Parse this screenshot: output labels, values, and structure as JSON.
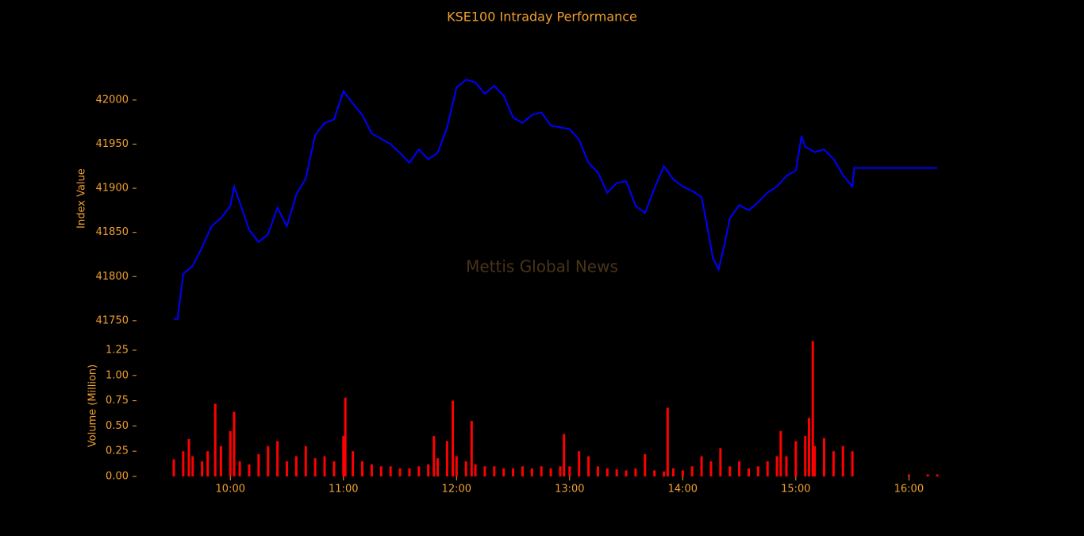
{
  "chart_data": [
    {
      "type": "line",
      "title": "KSE100 Intraday Performance",
      "ylabel": "Index Value",
      "annotation": "Mettis Global News",
      "series": [
        {
          "name": "KSE100",
          "color": "#0000ff",
          "x": [
            "09:30",
            "09:32",
            "09:35",
            "09:40",
            "09:45",
            "09:50",
            "09:55",
            "10:00",
            "10:02",
            "10:05",
            "10:10",
            "10:15",
            "10:20",
            "10:25",
            "10:30",
            "10:35",
            "10:40",
            "10:45",
            "10:50",
            "10:55",
            "11:00",
            "11:05",
            "11:10",
            "11:15",
            "11:20",
            "11:25",
            "11:30",
            "11:35",
            "11:40",
            "11:45",
            "11:50",
            "11:55",
            "12:00",
            "12:05",
            "12:10",
            "12:15",
            "12:20",
            "12:25",
            "12:30",
            "12:35",
            "12:40",
            "12:45",
            "12:50",
            "12:55",
            "13:00",
            "13:05",
            "13:10",
            "13:15",
            "13:20",
            "13:25",
            "13:30",
            "13:35",
            "13:40",
            "13:45",
            "13:50",
            "13:55",
            "14:00",
            "14:05",
            "14:10",
            "14:13",
            "14:16",
            "14:19",
            "14:22",
            "14:25",
            "14:30",
            "14:35",
            "14:40",
            "14:45",
            "14:50",
            "14:55",
            "15:00",
            "15:03",
            "15:05",
            "15:10",
            "15:15",
            "15:20",
            "15:25",
            "15:30",
            "15:31",
            "16:15"
          ],
          "values": [
            41752,
            41752,
            41803,
            41812,
            41833,
            41857,
            41866,
            41880,
            41902,
            41884,
            41853,
            41839,
            41848,
            41878,
            41857,
            41893,
            41911,
            41960,
            41974,
            41978,
            42010,
            41996,
            41983,
            41962,
            41956,
            41950,
            41940,
            41929,
            41944,
            41933,
            41940,
            41969,
            42014,
            42023,
            42020,
            42007,
            42016,
            42005,
            41980,
            41974,
            41983,
            41986,
            41971,
            41969,
            41967,
            41955,
            41929,
            41918,
            41895,
            41906,
            41908,
            41880,
            41872,
            41900,
            41925,
            41910,
            41902,
            41897,
            41890,
            41857,
            41821,
            41808,
            41835,
            41866,
            41881,
            41875,
            41884,
            41895,
            41902,
            41914,
            41920,
            41959,
            41947,
            41941,
            41944,
            41933,
            41915,
            41902,
            41923,
            41923
          ]
        }
      ],
      "xlim": [
        "09:30",
        "16:15"
      ],
      "ylim": [
        41740,
        42035
      ],
      "yticks": [
        41750,
        41800,
        41850,
        41900,
        41950,
        42000
      ]
    },
    {
      "type": "bar",
      "ylabel": "Volume (Million)",
      "series": [
        {
          "name": "Volume",
          "color": "#ff0000",
          "x": [
            "09:30",
            "09:35",
            "09:38",
            "09:40",
            "09:45",
            "09:48",
            "09:52",
            "09:55",
            "10:00",
            "10:02",
            "10:05",
            "10:10",
            "10:15",
            "10:20",
            "10:25",
            "10:30",
            "10:35",
            "10:40",
            "10:45",
            "10:50",
            "10:55",
            "11:00",
            "11:01",
            "11:05",
            "11:10",
            "11:15",
            "11:20",
            "11:25",
            "11:30",
            "11:35",
            "11:40",
            "11:45",
            "11:48",
            "11:50",
            "11:55",
            "11:58",
            "12:00",
            "12:05",
            "12:08",
            "12:10",
            "12:15",
            "12:20",
            "12:25",
            "12:30",
            "12:35",
            "12:40",
            "12:45",
            "12:50",
            "12:55",
            "12:57",
            "13:00",
            "13:05",
            "13:10",
            "13:15",
            "13:20",
            "13:25",
            "13:30",
            "13:35",
            "13:40",
            "13:45",
            "13:50",
            "13:52",
            "13:55",
            "14:00",
            "14:05",
            "14:10",
            "14:15",
            "14:20",
            "14:25",
            "14:30",
            "14:35",
            "14:40",
            "14:45",
            "14:50",
            "14:52",
            "14:55",
            "15:00",
            "15:05",
            "15:07",
            "15:09",
            "15:10",
            "15:15",
            "15:20",
            "15:25",
            "15:30",
            "16:00",
            "16:10",
            "16:15"
          ],
          "values": [
            0.17,
            0.25,
            0.37,
            0.2,
            0.15,
            0.25,
            0.72,
            0.3,
            0.45,
            0.64,
            0.15,
            0.12,
            0.22,
            0.3,
            0.35,
            0.15,
            0.2,
            0.3,
            0.18,
            0.2,
            0.15,
            0.4,
            0.78,
            0.25,
            0.15,
            0.12,
            0.1,
            0.1,
            0.08,
            0.08,
            0.1,
            0.12,
            0.4,
            0.18,
            0.35,
            0.75,
            0.2,
            0.15,
            0.55,
            0.12,
            0.1,
            0.1,
            0.08,
            0.08,
            0.1,
            0.08,
            0.1,
            0.08,
            0.1,
            0.42,
            0.1,
            0.25,
            0.2,
            0.1,
            0.08,
            0.07,
            0.06,
            0.08,
            0.22,
            0.06,
            0.05,
            0.68,
            0.08,
            0.06,
            0.1,
            0.2,
            0.15,
            0.28,
            0.1,
            0.15,
            0.08,
            0.1,
            0.15,
            0.2,
            0.45,
            0.2,
            0.35,
            0.4,
            0.58,
            1.34,
            0.3,
            0.38,
            0.25,
            0.3,
            0.25,
            0.02,
            0.02,
            0.02
          ]
        }
      ],
      "xlim": [
        "09:30",
        "16:15"
      ],
      "ylim": [
        0,
        1.36
      ],
      "yticks": [
        {
          "value": 0,
          "label": "0.00"
        },
        {
          "value": 0.25,
          "label": "0.25"
        },
        {
          "value": 0.5,
          "label": "0.50"
        },
        {
          "value": 0.75,
          "label": "0.75"
        },
        {
          "value": 1,
          "label": "1.00"
        },
        {
          "value": 1.25,
          "label": "1.25"
        }
      ],
      "xticks": [
        "10:00",
        "11:00",
        "12:00",
        "13:00",
        "14:00",
        "15:00",
        "16:00"
      ]
    }
  ]
}
